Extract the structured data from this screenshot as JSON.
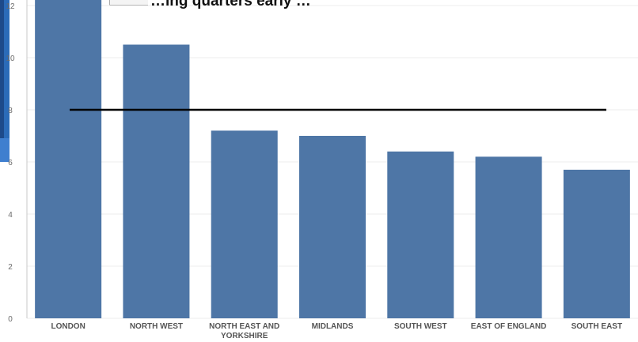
{
  "chart_data": {
    "type": "bar",
    "title": "…ing quarters early …",
    "categories": [
      "LONDON",
      "NORTH WEST",
      "NORTH EAST AND YORKSHIRE",
      "MIDLANDS",
      "SOUTH WEST",
      "EAST OF ENGLAND",
      "SOUTH EAST"
    ],
    "values": [
      12.5,
      10.5,
      7.2,
      7.0,
      6.4,
      6.2,
      5.7
    ],
    "reference_line": 8,
    "ylim": [
      0,
      12
    ],
    "yticks": [
      0,
      2,
      4,
      6,
      8,
      10,
      12
    ],
    "bar_color": "#4e76a6",
    "reference_line_color": "#000000",
    "grid": true
  }
}
